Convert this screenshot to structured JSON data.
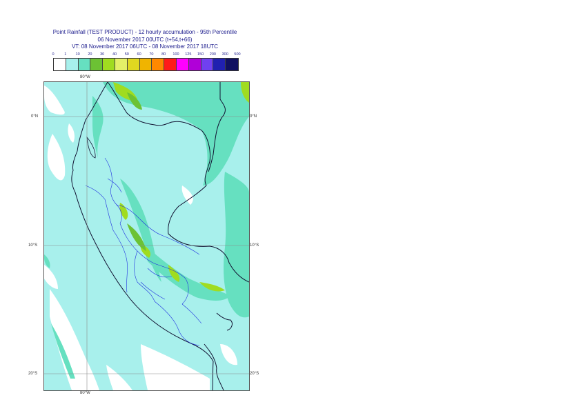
{
  "header": {
    "line1": "Point Rainfall (TEST PRODUCT) - 12 hourly accumulation - 95th Percentile",
    "line2": "06 November 2017 00UTC (t+54,t+66)",
    "line3": "VT: 08 November 2017 06UTC - 08 November 2017 18UTC"
  },
  "legend": {
    "ticks": [
      "0",
      "1",
      "10",
      "20",
      "30",
      "40",
      "50",
      "60",
      "70",
      "80",
      "100",
      "125",
      "150",
      "200",
      "300",
      "500"
    ],
    "colors": [
      "#ffffff",
      "#a8f0ec",
      "#66e0c0",
      "#6cc234",
      "#a0dc20",
      "#e4f068",
      "#e0d820",
      "#f0b400",
      "#ff8800",
      "#ff1a1a",
      "#ff00ff",
      "#b000d8",
      "#7040f0",
      "#2020b0",
      "#101060"
    ]
  },
  "labels": {
    "lon_top": "80°W",
    "lon_bottom": "80°W",
    "lat_0_left": "0°N",
    "lat_0_right": "0°N",
    "lat_10_left": "10°S",
    "lat_10_right": "10°S",
    "lat_20_left": "20°S",
    "lat_20_right": "20°S"
  }
}
